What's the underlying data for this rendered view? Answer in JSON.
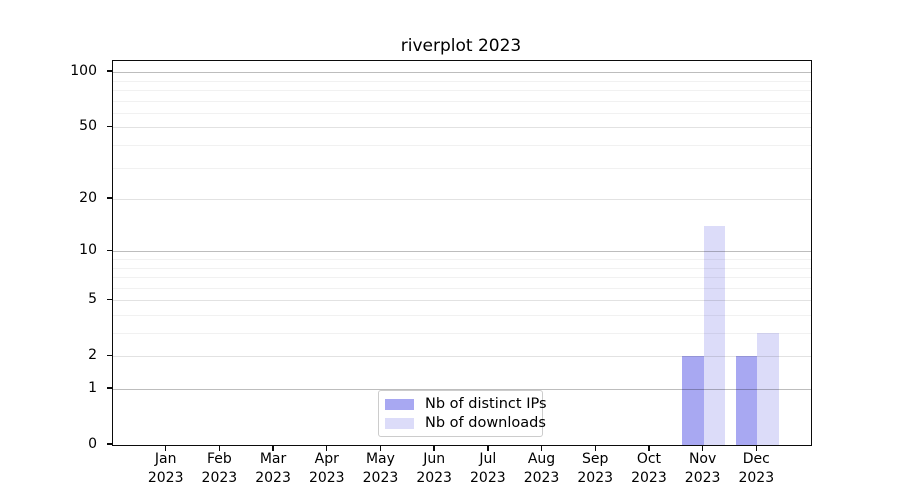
{
  "figure": {
    "title": "riverplot 2023"
  },
  "chart_data": {
    "type": "bar",
    "title": "riverplot 2023",
    "categories": [
      "Jan",
      "Feb",
      "Mar",
      "Apr",
      "May",
      "Jun",
      "Jul",
      "Aug",
      "Sep",
      "Oct",
      "Nov",
      "Dec"
    ],
    "x_year_line": "2023",
    "series": [
      {
        "name": "Nb of distinct IPs",
        "color": "#a8a8f2",
        "values": [
          0,
          0,
          0,
          0,
          0,
          0,
          0,
          0,
          0,
          0,
          2,
          2
        ]
      },
      {
        "name": "Nb of downloads",
        "color": "#dcdcf9",
        "values": [
          0,
          0,
          0,
          0,
          0,
          0,
          0,
          0,
          0,
          0,
          14,
          3
        ]
      }
    ],
    "xlabel": "",
    "ylabel": "",
    "yscale": "log1p",
    "ylim": [
      0,
      115
    ],
    "yticks_labeled": [
      0,
      1,
      2,
      5,
      10,
      20,
      50,
      100
    ],
    "yticks_major_grid": [
      1,
      10,
      100
    ],
    "yticks_minor_grid": [
      3,
      4,
      6,
      7,
      8,
      9,
      30,
      40,
      60,
      70,
      80,
      90
    ],
    "grid": "on",
    "legend_position": "lower center",
    "bar_group": "side-by-side pair centered on month tick"
  }
}
